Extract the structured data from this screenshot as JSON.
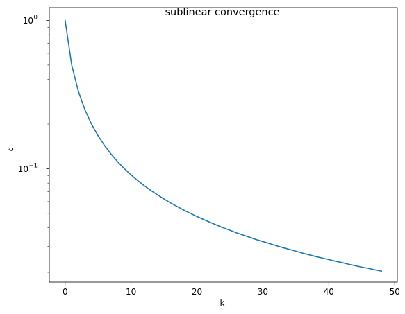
{
  "chart_data": {
    "type": "line",
    "title": "sublinear convergence",
    "xlabel": "k",
    "ylabel": "ε",
    "xscale": "linear",
    "yscale": "log",
    "xlim": [
      -2.4,
      50.4
    ],
    "ylim": [
      0.0172,
      1.22
    ],
    "grid": false,
    "legend": "none",
    "x_ticks": [
      0,
      10,
      20,
      30,
      40,
      50
    ],
    "x_tick_labels": [
      "0",
      "10",
      "20",
      "30",
      "40",
      "50"
    ],
    "y_major_ticks": [
      0.1,
      1
    ],
    "y_tick_labels": [
      {
        "base": "10",
        "exp": "−1",
        "value": 0.1
      },
      {
        "base": "10",
        "exp": "0",
        "value": 1
      }
    ],
    "y_minor_ticks": [
      0.02,
      0.03,
      0.04,
      0.05,
      0.06,
      0.07,
      0.08,
      0.09,
      0.2,
      0.3,
      0.4,
      0.5,
      0.6,
      0.7,
      0.8,
      0.9
    ],
    "series": [
      {
        "color": "#1f77b4",
        "x": [
          0,
          1,
          2,
          3,
          4,
          5,
          6,
          7,
          8,
          9,
          10,
          11,
          12,
          13,
          14,
          15,
          16,
          17,
          18,
          19,
          20,
          21,
          22,
          23,
          24,
          25,
          26,
          27,
          28,
          29,
          30,
          31,
          32,
          33,
          34,
          35,
          36,
          37,
          38,
          39,
          40,
          41,
          42,
          43,
          44,
          45,
          46,
          47,
          48
        ],
        "y": [
          1.0,
          0.5,
          0.3333,
          0.25,
          0.2,
          0.1667,
          0.1429,
          0.125,
          0.1111,
          0.1,
          0.0909,
          0.0833,
          0.0769,
          0.0714,
          0.0667,
          0.0625,
          0.0588,
          0.0556,
          0.0526,
          0.05,
          0.0476,
          0.0455,
          0.0435,
          0.0417,
          0.04,
          0.0385,
          0.037,
          0.0357,
          0.0345,
          0.0333,
          0.0323,
          0.0313,
          0.0303,
          0.0294,
          0.0286,
          0.0278,
          0.027,
          0.0263,
          0.0256,
          0.025,
          0.0244,
          0.0238,
          0.0233,
          0.0227,
          0.0222,
          0.0217,
          0.0213,
          0.0208,
          0.0204
        ]
      }
    ]
  }
}
